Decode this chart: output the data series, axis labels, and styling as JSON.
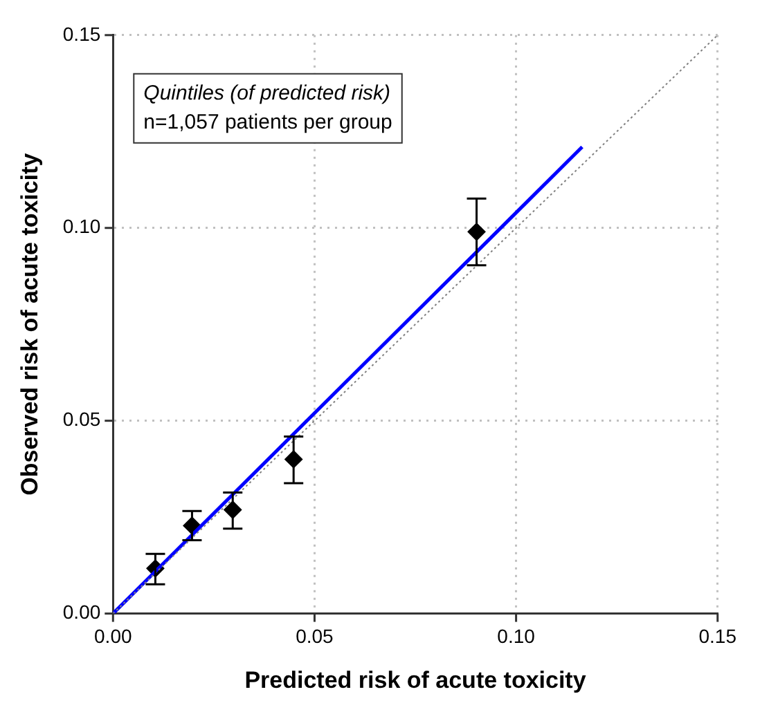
{
  "chart_data": {
    "type": "scatter",
    "xlabel": "Predicted risk of acute toxicity",
    "ylabel": "Observed risk of acute toxicity",
    "annotations": [
      "Quintiles (of predicted risk)",
      "n=1,057 patients per group"
    ],
    "xlim": [
      0,
      0.15
    ],
    "ylim": [
      0,
      0.15
    ],
    "xticks": [
      {
        "value": 0,
        "label": "0.00"
      },
      0.05,
      {
        "value": 0.1,
        "label": "0.10"
      },
      0.15
    ],
    "yticks": [
      {
        "value": 0,
        "label": "0.00"
      },
      0.05,
      {
        "value": 0.1,
        "label": "0.10"
      },
      0.15
    ],
    "grid": true,
    "legend": false,
    "series": [
      {
        "type": "line",
        "color": "#808080",
        "line_style": "dotted",
        "marker": "none",
        "x": [
          0,
          0.15
        ],
        "values": [
          0,
          0.15
        ]
      },
      {
        "type": "line",
        "color": "#0000ff",
        "line_style": "solid",
        "marker": "none",
        "x": [
          0,
          0.1164
        ],
        "values": [
          0,
          0.121
        ]
      },
      {
        "color": "#000000",
        "marker": "diamond",
        "x": [
          0.0105,
          0.0196,
          0.0297,
          0.0448,
          0.0902
        ],
        "values": [
          0.0117,
          0.0228,
          0.0269,
          0.04,
          0.099
        ],
        "errors": [
          [
            0.0076,
            0.0155
          ],
          [
            0.019,
            0.0266
          ],
          [
            0.022,
            0.0314
          ],
          [
            0.0338,
            0.0459
          ],
          [
            0.0903,
            0.1076
          ]
        ]
      }
    ]
  }
}
